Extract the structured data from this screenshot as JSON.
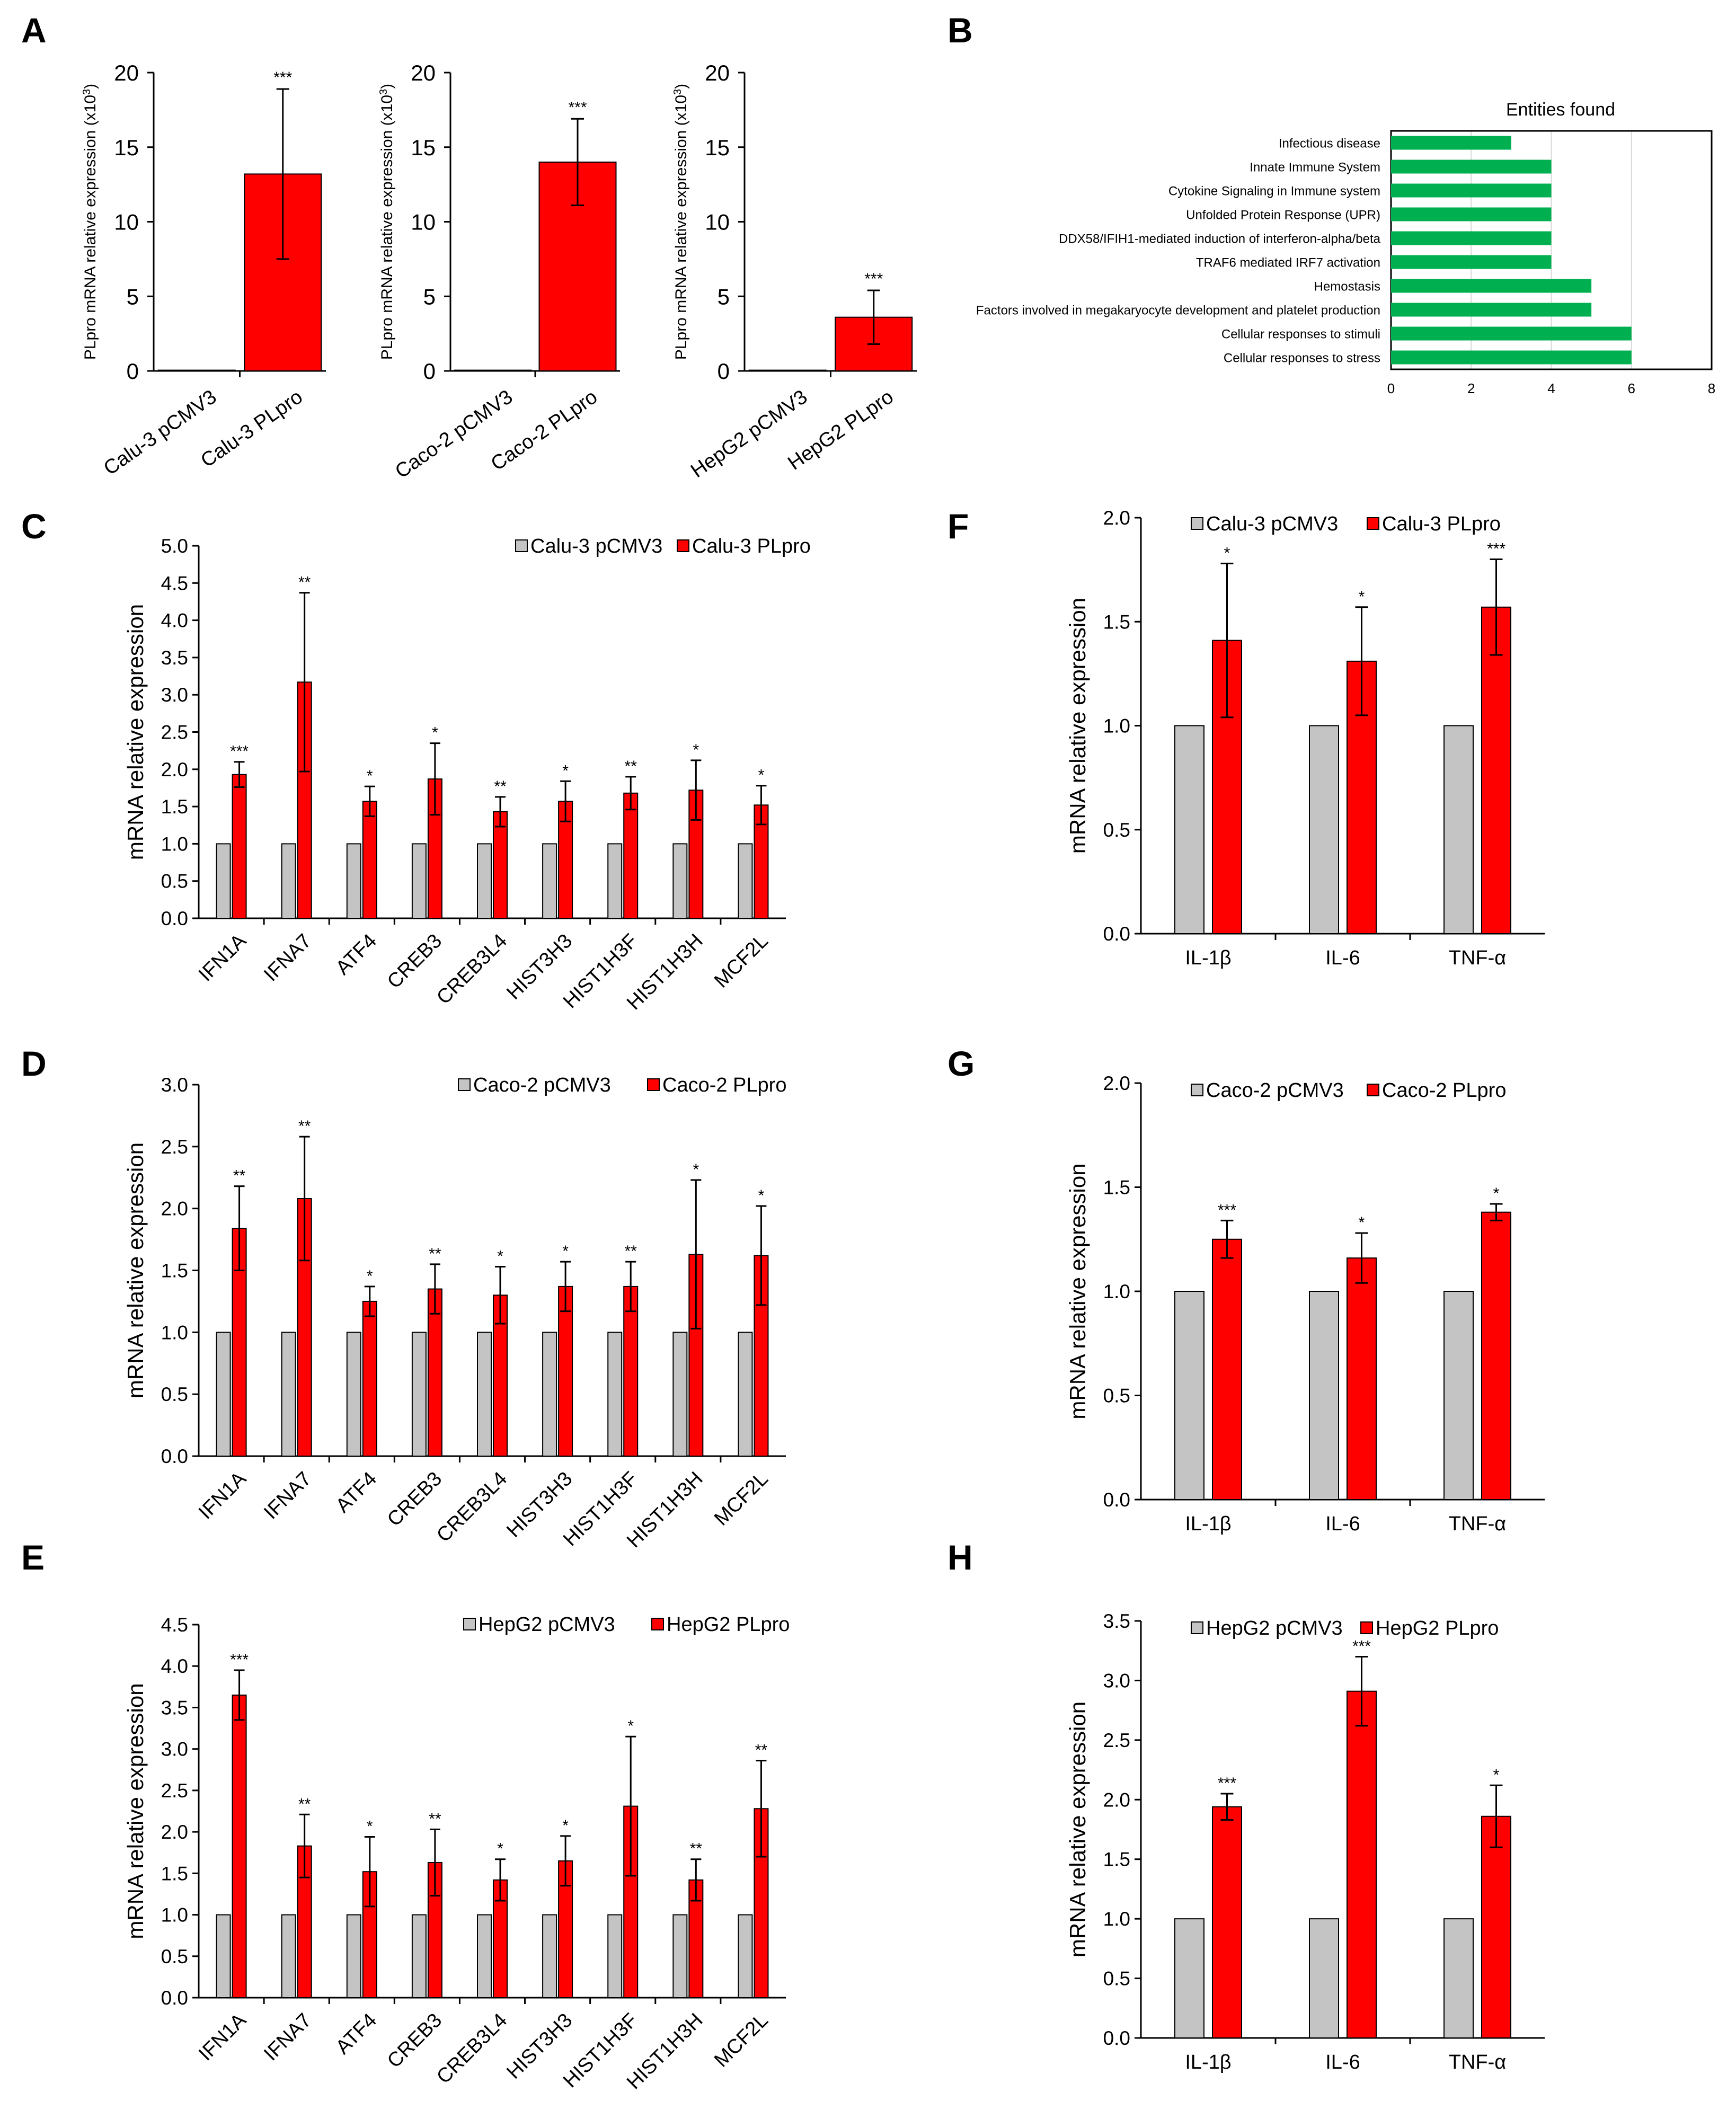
{
  "figure": {
    "panel_labels": [
      "A",
      "B",
      "C",
      "D",
      "E",
      "F",
      "G",
      "H"
    ]
  },
  "colors": {
    "control": "#c4c4c4",
    "treated": "#ff0000",
    "reactome": "#00b050",
    "axis": "#000000"
  },
  "chart_data": [
    {
      "id": "A1",
      "type": "bar",
      "ylabel_prefix": "PLpro mRNA relative expression (x10",
      "ylabel_exp": "3",
      "ylabel_suffix": ")",
      "categories": [
        "Calu-3 pCMV3",
        "Calu-3 PLpro"
      ],
      "values": [
        0.05,
        13.2
      ],
      "errors": [
        0,
        5.7
      ],
      "sig": [
        "",
        "***"
      ],
      "ylim": [
        0,
        20
      ],
      "yticks": [
        "0",
        "5",
        "10",
        "15",
        "20"
      ],
      "ytick_values": [
        0,
        5,
        10,
        15,
        20
      ]
    },
    {
      "id": "A2",
      "type": "bar",
      "ylabel_prefix": "PLpro mRNA relative expression (x10",
      "ylabel_exp": "3",
      "ylabel_suffix": ")",
      "categories": [
        "Caco-2 pCMV3",
        "Caco-2 PLpro"
      ],
      "values": [
        0.05,
        14.0
      ],
      "errors": [
        0,
        2.9
      ],
      "sig": [
        "",
        "***"
      ],
      "ylim": [
        0,
        20
      ],
      "yticks": [
        "0",
        "5",
        "10",
        "15",
        "20"
      ],
      "ytick_values": [
        0,
        5,
        10,
        15,
        20
      ]
    },
    {
      "id": "A3",
      "type": "bar",
      "ylabel_prefix": "PLpro mRNA relative expression (x10",
      "ylabel_exp": "3",
      "ylabel_suffix": ")",
      "categories": [
        "HepG2 pCMV3",
        "HepG2 PLpro"
      ],
      "values": [
        0.05,
        3.6
      ],
      "errors": [
        0,
        1.8
      ],
      "sig": [
        "",
        "***"
      ],
      "ylim": [
        0,
        20
      ],
      "yticks": [
        "0",
        "5",
        "10",
        "15",
        "20"
      ],
      "ytick_values": [
        0,
        5,
        10,
        15,
        20
      ]
    },
    {
      "id": "B",
      "type": "bar",
      "orientation": "horizontal",
      "title": "Entities found",
      "categories": [
        "Infectious disease",
        "Innate Immune System",
        "Cytokine Signaling in Immune system",
        "Unfolded Protein Response (UPR)",
        "DDX58/IFIH1-mediated induction of interferon-alpha/beta",
        "TRAF6 mediated IRF7 activation",
        "Hemostasis",
        "Factors involved in megakaryocyte development and platelet production",
        "Cellular responses to stimuli",
        "Cellular responses to stress"
      ],
      "values": [
        3,
        4,
        4,
        4,
        4,
        4,
        5,
        5,
        6,
        6
      ],
      "xlim": [
        0,
        8
      ],
      "xticks": [
        "0",
        "2",
        "4",
        "6",
        "8"
      ],
      "xtick_values": [
        0,
        2,
        4,
        6,
        8
      ]
    },
    {
      "id": "C",
      "type": "bar",
      "ylabel": "mRNA relative expression",
      "legend": [
        "Calu-3 pCMV3",
        "Calu-3 PLpro"
      ],
      "categories": [
        "IFN1A",
        "IFNA7",
        "ATF4",
        "CREB3",
        "CREB3L4",
        "HIST3H3",
        "HIST1H3F",
        "HIST1H3H",
        "MCF2L"
      ],
      "series": [
        {
          "name": "Calu-3 pCMV3",
          "values": [
            1,
            1,
            1,
            1,
            1,
            1,
            1,
            1,
            1
          ]
        },
        {
          "name": "Calu-3 PLpro",
          "values": [
            1.93,
            3.17,
            1.57,
            1.87,
            1.43,
            1.57,
            1.68,
            1.72,
            1.52
          ],
          "errors": [
            0.17,
            1.2,
            0.2,
            0.48,
            0.2,
            0.27,
            0.22,
            0.4,
            0.26
          ]
        }
      ],
      "sig": [
        "***",
        "**",
        "*",
        "*",
        "**",
        "*",
        "**",
        "*",
        "*"
      ],
      "ylim": [
        0,
        5
      ],
      "yticks": [
        "0.0",
        "0.5",
        "1.0",
        "1.5",
        "2.0",
        "2.5",
        "3.0",
        "3.5",
        "4.0",
        "4.5",
        "5.0"
      ],
      "ytick_values": [
        0,
        0.5,
        1,
        1.5,
        2,
        2.5,
        3,
        3.5,
        4,
        4.5,
        5
      ]
    },
    {
      "id": "D",
      "type": "bar",
      "ylabel": "mRNA relative expression",
      "legend": [
        "Caco-2 pCMV3",
        "Caco-2 PLpro"
      ],
      "categories": [
        "IFN1A",
        "IFNA7",
        "ATF4",
        "CREB3",
        "CREB3L4",
        "HIST3H3",
        "HIST1H3F",
        "HIST1H3H",
        "MCF2L"
      ],
      "series": [
        {
          "name": "Caco-2 pCMV3",
          "values": [
            1,
            1,
            1,
            1,
            1,
            1,
            1,
            1,
            1
          ]
        },
        {
          "name": "Caco-2 PLpro",
          "values": [
            1.84,
            2.08,
            1.25,
            1.35,
            1.3,
            1.37,
            1.37,
            1.63,
            1.62
          ],
          "errors": [
            0.34,
            0.5,
            0.12,
            0.2,
            0.23,
            0.2,
            0.2,
            0.6,
            0.4
          ]
        }
      ],
      "sig": [
        "**",
        "**",
        "*",
        "**",
        "*",
        "*",
        "**",
        "*",
        "*"
      ],
      "ylim": [
        0,
        3
      ],
      "yticks": [
        "0.0",
        "0.5",
        "1.0",
        "1.5",
        "2.0",
        "2.5",
        "3.0"
      ],
      "ytick_values": [
        0,
        0.5,
        1,
        1.5,
        2,
        2.5,
        3
      ]
    },
    {
      "id": "E",
      "type": "bar",
      "ylabel": "mRNA relative expression",
      "legend": [
        "HepG2 pCMV3",
        "HepG2 PLpro"
      ],
      "categories": [
        "IFN1A",
        "IFNA7",
        "ATF4",
        "CREB3",
        "CREB3L4",
        "HIST3H3",
        "HIST1H3F",
        "HIST1H3H",
        "MCF2L"
      ],
      "series": [
        {
          "name": "HepG2 pCMV3",
          "values": [
            1,
            1,
            1,
            1,
            1,
            1,
            1,
            1,
            1
          ]
        },
        {
          "name": "HepG2 PLpro",
          "values": [
            3.65,
            1.83,
            1.52,
            1.63,
            1.42,
            1.65,
            2.31,
            1.42,
            2.28
          ],
          "errors": [
            0.3,
            0.38,
            0.42,
            0.4,
            0.25,
            0.3,
            0.84,
            0.25,
            0.58
          ]
        }
      ],
      "sig": [
        "***",
        "**",
        "*",
        "**",
        "*",
        "*",
        "*",
        "**",
        "**"
      ],
      "ylim": [
        0,
        4.5
      ],
      "yticks": [
        "0.0",
        "0.5",
        "1.0",
        "1.5",
        "2.0",
        "2.5",
        "3.0",
        "3.5",
        "4.0",
        "4.5"
      ],
      "ytick_values": [
        0,
        0.5,
        1,
        1.5,
        2,
        2.5,
        3,
        3.5,
        4,
        4.5
      ]
    },
    {
      "id": "F",
      "type": "bar",
      "ylabel": "mRNA relative expression",
      "legend": [
        "Calu-3 pCMV3",
        "Calu-3 PLpro"
      ],
      "categories": [
        "IL-1β",
        "IL-6",
        "TNF-α"
      ],
      "series": [
        {
          "name": "Calu-3 pCMV3",
          "values": [
            1,
            1,
            1
          ]
        },
        {
          "name": "Calu-3 PLpro",
          "values": [
            1.41,
            1.31,
            1.57
          ],
          "errors": [
            0.37,
            0.26,
            0.23
          ]
        }
      ],
      "sig": [
        "*",
        "*",
        "***"
      ],
      "ylim": [
        0,
        2
      ],
      "yticks": [
        "0.0",
        "0.5",
        "1.0",
        "1.5",
        "2.0"
      ],
      "ytick_values": [
        0,
        0.5,
        1,
        1.5,
        2
      ]
    },
    {
      "id": "G",
      "type": "bar",
      "ylabel": "mRNA relative expression",
      "legend": [
        "Caco-2 pCMV3",
        "Caco-2 PLpro"
      ],
      "categories": [
        "IL-1β",
        "IL-6",
        "TNF-α"
      ],
      "series": [
        {
          "name": "Caco-2 pCMV3",
          "values": [
            1,
            1,
            1
          ]
        },
        {
          "name": "Caco-2 PLpro",
          "values": [
            1.25,
            1.16,
            1.38
          ],
          "errors": [
            0.09,
            0.12,
            0.04
          ]
        }
      ],
      "sig": [
        "***",
        "*",
        "*"
      ],
      "ylim": [
        0,
        2
      ],
      "yticks": [
        "0.0",
        "0.5",
        "1.0",
        "1.5",
        "2.0"
      ],
      "ytick_values": [
        0,
        0.5,
        1,
        1.5,
        2
      ]
    },
    {
      "id": "H",
      "type": "bar",
      "ylabel": "mRNA relative expression",
      "legend": [
        "HepG2 pCMV3",
        "HepG2 PLpro"
      ],
      "categories": [
        "IL-1β",
        "IL-6",
        "TNF-α"
      ],
      "series": [
        {
          "name": "HepG2 pCMV3",
          "values": [
            1,
            1,
            1
          ]
        },
        {
          "name": "HepG2 PLpro",
          "values": [
            1.94,
            2.91,
            1.86
          ],
          "errors": [
            0.11,
            0.29,
            0.26
          ]
        }
      ],
      "sig": [
        "***",
        "***",
        "*"
      ],
      "ylim": [
        0,
        3.5
      ],
      "yticks": [
        "0.0",
        "0.5",
        "1.0",
        "1.5",
        "2.0",
        "2.5",
        "3.0",
        "3.5"
      ],
      "ytick_values": [
        0,
        0.5,
        1,
        1.5,
        2,
        2.5,
        3,
        3.5
      ]
    }
  ]
}
